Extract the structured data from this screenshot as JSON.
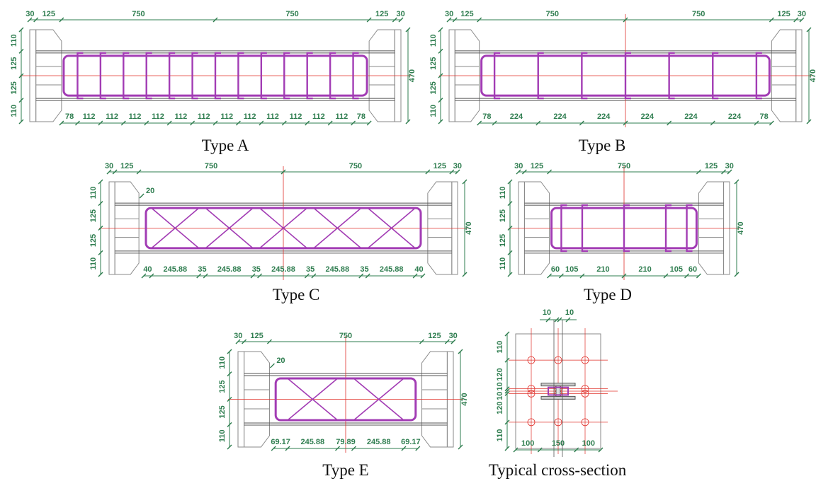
{
  "panels": [
    {
      "caption": "Type A",
      "top": [
        "30",
        "125",
        "750",
        "750",
        "125",
        "30"
      ],
      "left": [
        "110",
        "125",
        "125",
        "110"
      ],
      "right": "470",
      "bottom": [
        "78",
        "112",
        "112",
        "112",
        "112",
        "112",
        "112",
        "112",
        "112",
        "112",
        "112",
        "112",
        "112",
        "78"
      ]
    },
    {
      "caption": "Type B",
      "top": [
        "30",
        "125",
        "750",
        "750",
        "125",
        "30"
      ],
      "left": [
        "110",
        "125",
        "125",
        "110"
      ],
      "right": "470",
      "bottom": [
        "78",
        "224",
        "224",
        "224",
        "224",
        "224",
        "224",
        "78"
      ]
    },
    {
      "caption": "Type C",
      "top": [
        "30",
        "125",
        "750",
        "750",
        "125",
        "30"
      ],
      "left": [
        "110",
        "125",
        "125",
        "110"
      ],
      "right": "470",
      "bottom": [
        "40",
        "245.88",
        "35",
        "245.88",
        "35",
        "245.88",
        "35",
        "245.88",
        "35",
        "245.88",
        "40"
      ],
      "extra": "20"
    },
    {
      "caption": "Type D",
      "top": [
        "30",
        "125",
        "750",
        "125",
        "30"
      ],
      "left": [
        "110",
        "125",
        "125",
        "110"
      ],
      "right": "470",
      "bottom": [
        "60",
        "105",
        "210",
        "210",
        "105",
        "60"
      ]
    },
    {
      "caption": "Type E",
      "top": [
        "30",
        "125",
        "750",
        "125",
        "30"
      ],
      "left": [
        "110",
        "125",
        "125",
        "110"
      ],
      "right": "470",
      "bottom": [
        "69.17",
        "245.88",
        "79.89",
        "245.88",
        "69.17"
      ],
      "extra": "20"
    }
  ],
  "cross_section": {
    "caption": "Typical cross-section",
    "top": [
      "10",
      "10"
    ],
    "left": [
      "110",
      "120",
      "10",
      "10",
      "120",
      "110"
    ],
    "bottom": [
      "100",
      "150",
      "100"
    ]
  }
}
